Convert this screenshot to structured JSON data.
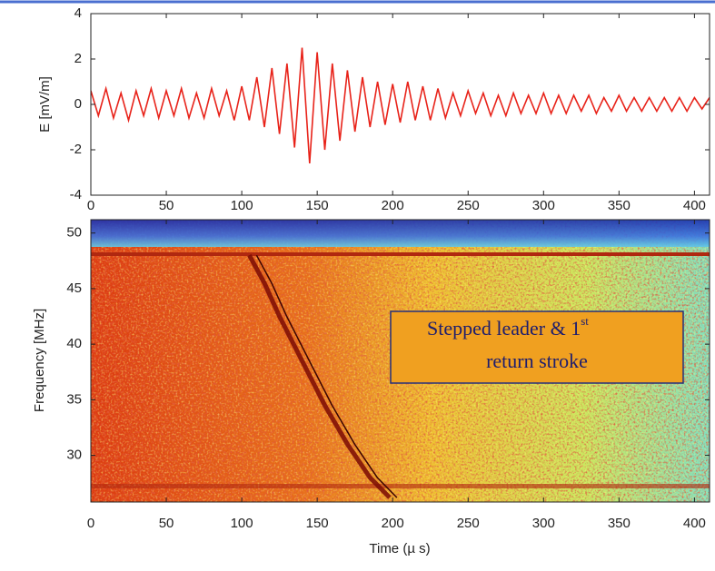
{
  "chart_data": [
    {
      "type": "line",
      "ylabel": "E [mV/m]",
      "color": "#e8231a",
      "xlim": [
        0,
        410
      ],
      "ylim": [
        -4,
        4
      ],
      "xticks": [
        0,
        50,
        100,
        150,
        200,
        250,
        300,
        350,
        400
      ],
      "yticks": [
        -4,
        -2,
        0,
        2,
        4
      ],
      "x": [
        0,
        5,
        10,
        15,
        20,
        25,
        30,
        35,
        40,
        45,
        50,
        55,
        60,
        65,
        70,
        75,
        80,
        85,
        90,
        95,
        100,
        105,
        110,
        115,
        120,
        125,
        130,
        135,
        140,
        145,
        150,
        155,
        160,
        165,
        170,
        175,
        180,
        185,
        190,
        195,
        200,
        205,
        210,
        215,
        220,
        225,
        230,
        235,
        240,
        245,
        250,
        255,
        260,
        265,
        270,
        275,
        280,
        285,
        290,
        295,
        300,
        305,
        310,
        315,
        320,
        325,
        330,
        335,
        340,
        345,
        350,
        355,
        360,
        365,
        370,
        375,
        380,
        385,
        390,
        395,
        400,
        405,
        410
      ],
      "values": [
        0.6,
        -0.5,
        0.7,
        -0.6,
        0.5,
        -0.7,
        0.6,
        -0.5,
        0.7,
        -0.6,
        0.6,
        -0.5,
        0.7,
        -0.6,
        0.5,
        -0.6,
        0.7,
        -0.5,
        0.6,
        -0.7,
        0.8,
        -0.7,
        1.2,
        -1.0,
        1.6,
        -1.3,
        1.8,
        -1.9,
        2.5,
        -2.6,
        2.3,
        -2.0,
        1.8,
        -1.6,
        1.5,
        -1.2,
        1.2,
        -1.0,
        1.0,
        -0.9,
        0.9,
        -0.8,
        1.0,
        -0.7,
        0.8,
        -0.7,
        0.7,
        -0.6,
        0.5,
        -0.5,
        0.6,
        -0.4,
        0.5,
        -0.5,
        0.4,
        -0.5,
        0.5,
        -0.4,
        0.4,
        -0.4,
        0.5,
        -0.4,
        0.4,
        -0.4,
        0.4,
        -0.3,
        0.4,
        -0.4,
        0.3,
        -0.3,
        0.4,
        -0.3,
        0.3,
        -0.3,
        0.3,
        -0.3,
        0.3,
        -0.3,
        0.3,
        -0.3,
        0.3,
        -0.2,
        0.3
      ]
    },
    {
      "type": "spectrogram",
      "xlabel": "Time (µ s)",
      "ylabel": "Frequency [MHz]",
      "color": "#7a0a05",
      "xlim": [
        0,
        410
      ],
      "ylim": [
        25.8,
        51.2
      ],
      "xticks": [
        0,
        50,
        100,
        150,
        200,
        250,
        300,
        350,
        400
      ],
      "yticks": [
        30,
        35,
        40,
        45,
        50
      ],
      "x": [
        105,
        115,
        125,
        140,
        155,
        170,
        185,
        198
      ],
      "values": [
        48,
        45.5,
        42.5,
        38.5,
        34.5,
        31,
        28,
        26.2
      ],
      "annotation": {
        "text": "Stepped leader & 1",
        "superscript": "st",
        "text2": "return stroke"
      }
    }
  ]
}
